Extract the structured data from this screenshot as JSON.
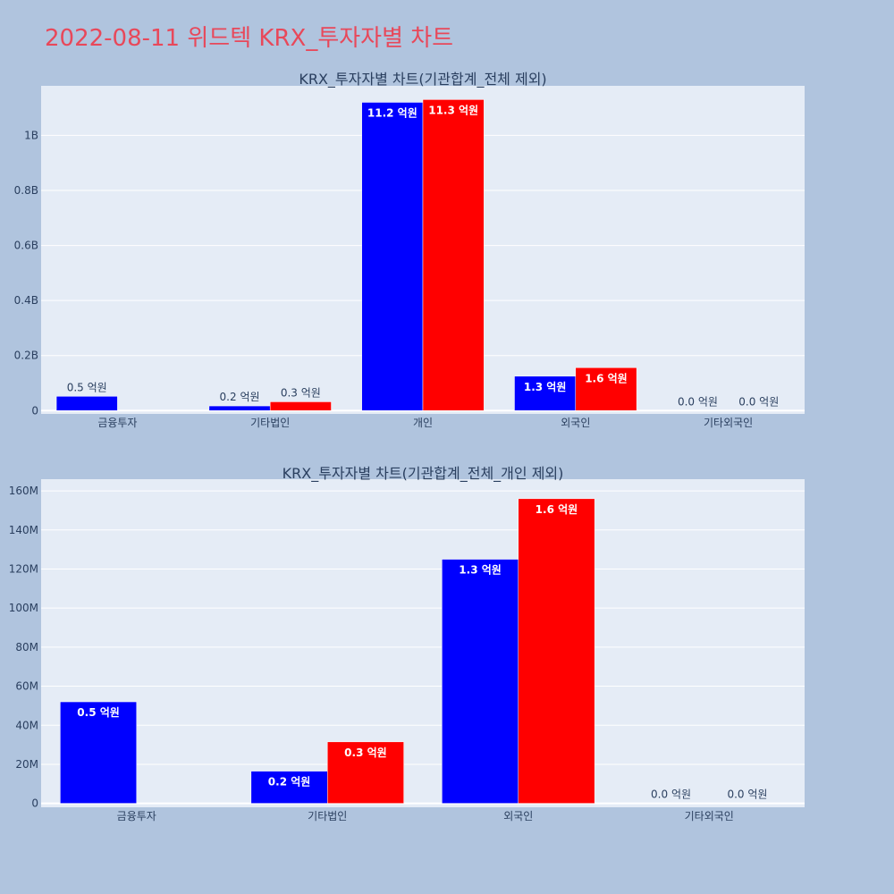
{
  "page": {
    "title": "2022-08-11 위드텍 KRX_투자자별 차트"
  },
  "colors": {
    "background": "#b0c4de",
    "plot_bg": "#e5ecf6",
    "series1": "#0000ff",
    "series2": "#ff0000",
    "title": "#e8485a",
    "text": "#2a3f5f"
  },
  "chart_data": [
    {
      "type": "bar",
      "title": "KRX_투자자별 차트(기관합계_전체 제외)",
      "categories": [
        "금융투자",
        "기타법인",
        "개인",
        "외국인",
        "기타외국인"
      ],
      "series": [
        {
          "values": [
            52000000,
            17000000,
            1120000000,
            125000000,
            0
          ],
          "labels": [
            "0.5 억원",
            "0.2 억원",
            "11.2 억원",
            "1.3 억원",
            "0.0 억원"
          ]
        },
        {
          "values": [
            0,
            32000000,
            1130000000,
            156000000,
            0
          ],
          "labels": [
            "",
            "0.3 억원",
            "11.3 억원",
            "1.6 억원",
            "0.0 억원"
          ]
        }
      ],
      "ylim": [
        -12000000,
        1180000000
      ],
      "yticks": [
        0,
        200000000,
        400000000,
        600000000,
        800000000,
        1000000000
      ],
      "ytick_labels": [
        "0",
        "0.2B",
        "0.4B",
        "0.6B",
        "0.8B",
        "1B"
      ],
      "grid": true
    },
    {
      "type": "bar",
      "title": "KRX_투자자별 차트(기관합계_전체_개인 제외)",
      "categories": [
        "금융투자",
        "기타법인",
        "외국인",
        "기타외국인"
      ],
      "series": [
        {
          "values": [
            52000000,
            16500000,
            125000000,
            0
          ],
          "labels": [
            "0.5 억원",
            "0.2 억원",
            "1.3 억원",
            "0.0 억원"
          ]
        },
        {
          "values": [
            0,
            31500000,
            156000000,
            0
          ],
          "labels": [
            "",
            "0.3 억원",
            "1.6 억원",
            "0.0 억원"
          ]
        }
      ],
      "ylim": [
        -2000000,
        166000000
      ],
      "yticks": [
        0,
        20000000,
        40000000,
        60000000,
        80000000,
        100000000,
        120000000,
        140000000,
        160000000
      ],
      "ytick_labels": [
        "0",
        "20M",
        "40M",
        "60M",
        "80M",
        "100M",
        "120M",
        "140M",
        "160M"
      ],
      "grid": true
    }
  ]
}
